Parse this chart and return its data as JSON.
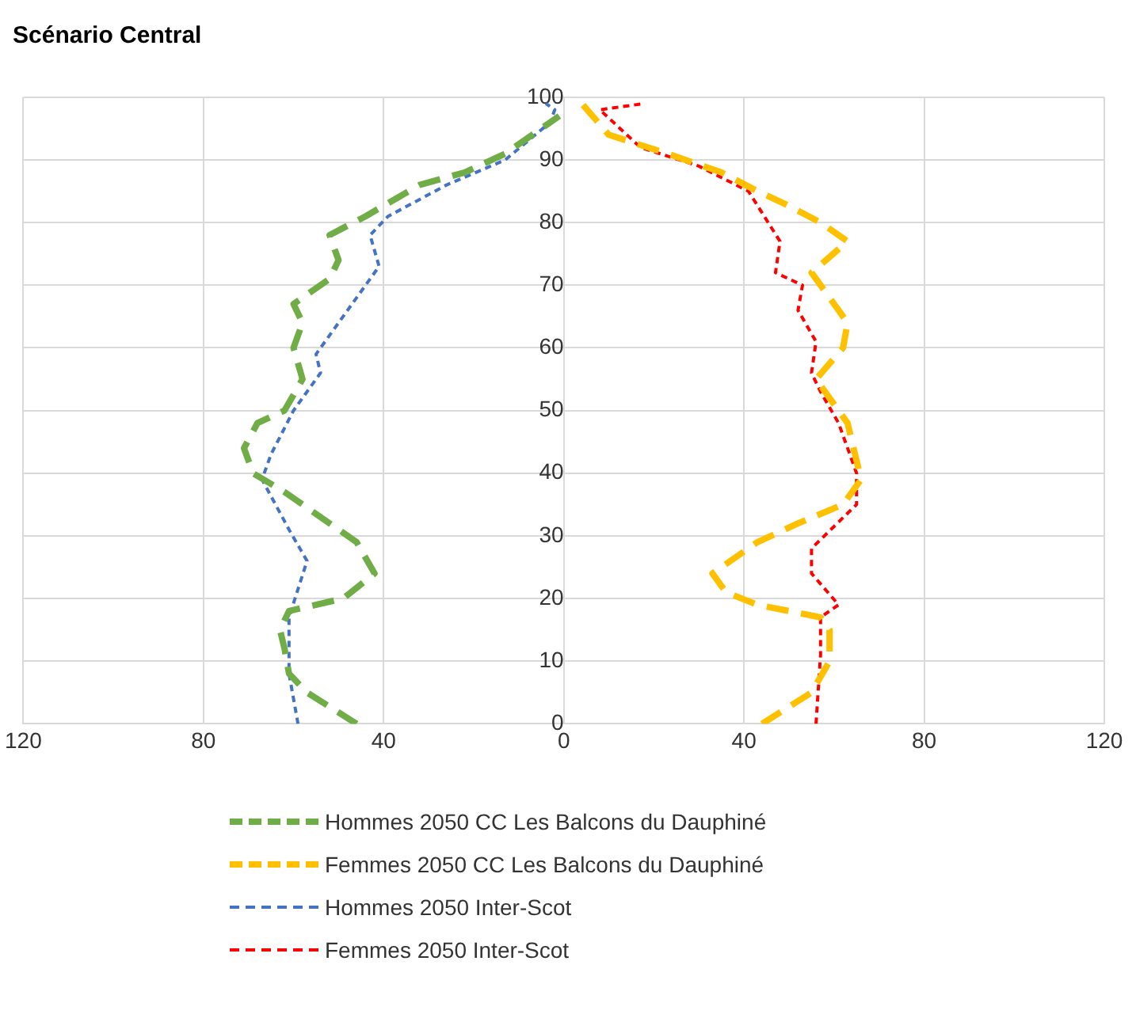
{
  "chart_data": {
    "type": "line",
    "title": "Scénario Central",
    "xlim": [
      -120,
      120
    ],
    "xticks": [
      {
        "value": -120,
        "label": "120"
      },
      {
        "value": -80,
        "label": "80"
      },
      {
        "value": -40,
        "label": "40"
      },
      0,
      40,
      80,
      120
    ],
    "ylim": [
      0,
      100
    ],
    "yticks": [
      0,
      10,
      20,
      30,
      40,
      50,
      60,
      70,
      80,
      90,
      100
    ],
    "grid": true,
    "legend": "bottom",
    "line_style": "dashed",
    "marker": "none",
    "series": [
      {
        "name": "Hommes 2050 CC Les Balcons du Dauphiné",
        "color": "#70ad47",
        "x": [
          -46,
          -57,
          -61,
          -62,
          -63,
          -61,
          -49,
          -42,
          -46,
          -54,
          -62,
          -69,
          -71,
          -68,
          -62,
          -58,
          -60,
          -58,
          -60,
          -52,
          -50,
          -52,
          -44,
          -32,
          -22,
          -13,
          -3,
          -1
        ],
        "values": [
          0,
          5,
          8,
          12,
          15,
          18,
          20,
          24,
          29,
          33,
          37,
          40,
          44,
          48,
          50,
          55,
          60,
          64,
          67,
          71,
          74,
          78,
          81,
          86,
          88,
          91,
          96,
          97
        ]
      },
      {
        "name": "Femmes 2050 CC Les Balcons du Dauphiné",
        "color": "#ffc000",
        "x": [
          44,
          55,
          59,
          59,
          57,
          43,
          36,
          33,
          43,
          52,
          62,
          66,
          65,
          63,
          61,
          56,
          62,
          63,
          60,
          55,
          63,
          57,
          49,
          43,
          35,
          23,
          10,
          4
        ],
        "values": [
          0,
          5,
          10,
          15,
          17,
          19,
          21,
          24,
          29,
          32,
          35,
          39,
          42,
          48,
          50,
          55,
          60,
          64,
          67,
          72,
          77,
          80,
          83,
          85,
          88,
          91,
          94,
          99
        ]
      },
      {
        "name": "Hommes 2050 Inter-Scot",
        "color": "#4472c4",
        "x": [
          -59,
          -61,
          -61,
          -57,
          -61,
          -67,
          -65,
          -60,
          -54,
          -55,
          -48,
          -41,
          -43,
          -39,
          -26,
          -13,
          -3,
          -2,
          -4
        ],
        "values": [
          0,
          8,
          17,
          26,
          31,
          39,
          43,
          50,
          56,
          59,
          66,
          73,
          78,
          81,
          86,
          90,
          96,
          98,
          99
        ]
      },
      {
        "name": "Femmes 2050 Inter-Scot",
        "color": "#ff0000",
        "x": [
          56,
          57,
          57,
          61,
          55,
          55,
          65,
          65,
          61,
          57,
          55,
          56,
          52,
          53,
          47,
          48,
          41,
          30,
          17,
          8,
          18
        ],
        "values": [
          0,
          11,
          17,
          19,
          24,
          28,
          35,
          40,
          48,
          53,
          56,
          61,
          66,
          70,
          72,
          77,
          85,
          89,
          92,
          98,
          99
        ]
      }
    ]
  }
}
